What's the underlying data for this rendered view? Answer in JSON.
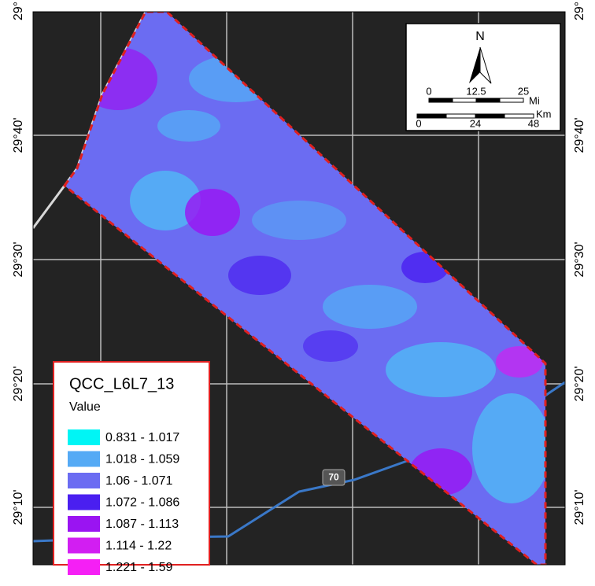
{
  "map": {
    "lat_labels_left": [
      "29°",
      "29°40'",
      "29°30'",
      "29°20'",
      "29°10'"
    ],
    "lat_labels_right": [
      "29°",
      "29°40'",
      "29°30'",
      "29°20'",
      "29°10'"
    ],
    "road_label": "70"
  },
  "legend": {
    "title": "QCC_L6L7_13",
    "subtitle": "Value",
    "items": [
      {
        "label": "0.831 - 1.017",
        "color": "#00f5f5"
      },
      {
        "label": "1.018 - 1.059",
        "color": "#55aaf5"
      },
      {
        "label": "1.06 - 1.071",
        "color": "#6b6cf2"
      },
      {
        "label": "1.072 - 1.086",
        "color": "#4a1ff0"
      },
      {
        "label": "1.087 - 1.113",
        "color": "#9a14f2"
      },
      {
        "label": "1.114 - 1.22",
        "color": "#d21ef2"
      },
      {
        "label": "1.221 - 1.59",
        "color": "#f51ff5"
      }
    ]
  },
  "scale": {
    "north": "N",
    "mi_labels": [
      "0",
      "12.5",
      "25"
    ],
    "mi_unit": "Mi",
    "km_labels": [
      "0",
      "24",
      "48"
    ],
    "km_unit": "Km"
  }
}
